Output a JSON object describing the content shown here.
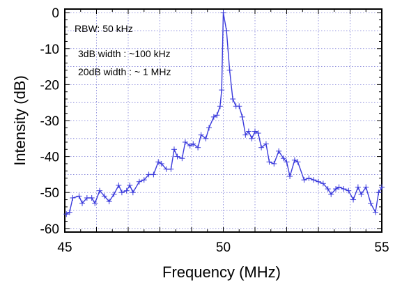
{
  "chart_data": {
    "type": "line",
    "title": "",
    "xlabel": "Frequency (MHz)",
    "ylabel": "Intensity (dB)",
    "xlim": [
      45,
      55
    ],
    "ylim": [
      -61,
      1
    ],
    "xticks": [
      45,
      50,
      55
    ],
    "yticks": [
      0,
      -10,
      -20,
      -30,
      -40,
      -50,
      -60
    ],
    "grid": true,
    "color": "#3a3adc",
    "annotations": [
      "RBW: 50 kHz",
      "3dB width : ~100 kHz",
      "20dB width : ~ 1 MHz"
    ],
    "x": [
      45.05,
      45.15,
      45.25,
      45.45,
      45.55,
      45.7,
      45.85,
      45.95,
      46.1,
      46.25,
      46.4,
      46.55,
      46.7,
      46.8,
      46.95,
      47.05,
      47.15,
      47.35,
      47.5,
      47.65,
      47.8,
      47.95,
      48.05,
      48.2,
      48.35,
      48.45,
      48.55,
      48.7,
      48.8,
      48.95,
      49.05,
      49.2,
      49.3,
      49.45,
      49.55,
      49.7,
      49.8,
      49.9,
      49.95,
      50.0,
      50.1,
      50.2,
      50.3,
      50.4,
      50.5,
      50.6,
      50.7,
      50.8,
      50.9,
      51.0,
      51.1,
      51.2,
      51.35,
      51.45,
      51.6,
      51.75,
      51.9,
      52.0,
      52.1,
      52.25,
      52.35,
      52.55,
      52.7,
      52.85,
      53.0,
      53.15,
      53.3,
      53.4,
      53.55,
      53.65,
      53.8,
      53.95,
      54.1,
      54.25,
      54.35,
      54.5,
      54.65,
      54.8,
      54.9,
      55.0
    ],
    "values": [
      -56,
      -55.5,
      -51.5,
      -51,
      -53,
      -51.5,
      -51.5,
      -53,
      -49.5,
      -51,
      -52.5,
      -50.5,
      -48,
      -50,
      -49.5,
      -48,
      -50,
      -47,
      -46.5,
      -45,
      -45,
      -41.5,
      -42,
      -43.5,
      -43.5,
      -38,
      -40,
      -40.5,
      -36,
      -37,
      -36.5,
      -37.5,
      -34,
      -35,
      -32,
      -29,
      -28.5,
      -26,
      -21.5,
      0,
      -5,
      -16,
      -24,
      -26,
      -26,
      -29,
      -34,
      -33,
      -35,
      -33,
      -33.5,
      -37.5,
      -36.5,
      -41.5,
      -42,
      -38.5,
      -40.5,
      -41.5,
      -45.5,
      -41,
      -41.5,
      -46.5,
      -46,
      -46.5,
      -47,
      -47.5,
      -49,
      -50.5,
      -49,
      -48.5,
      -49,
      -49.5,
      -52,
      -48.5,
      -50.5,
      -48.5,
      -53,
      -55.5,
      -50,
      -48.5
    ]
  }
}
